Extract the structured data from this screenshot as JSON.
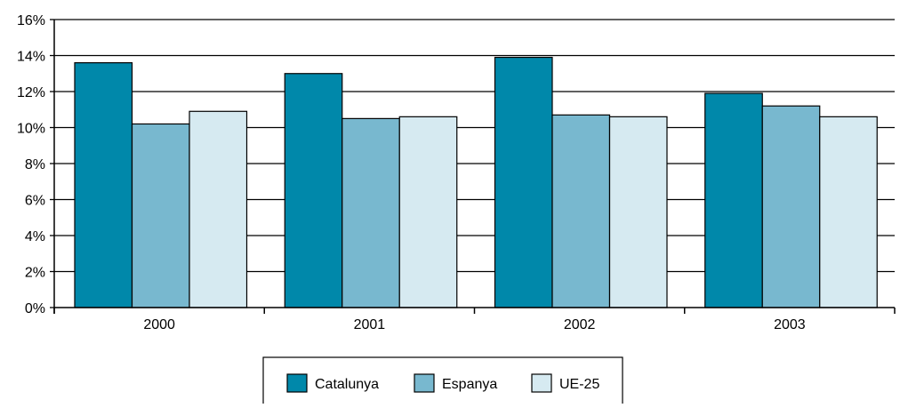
{
  "chart_data": {
    "type": "bar",
    "categories": [
      "2000",
      "2001",
      "2002",
      "2003"
    ],
    "series": [
      {
        "name": "Catalunya",
        "values": [
          13.6,
          13.0,
          13.9,
          11.9
        ],
        "color": "#0088AA"
      },
      {
        "name": "Espanya",
        "values": [
          10.2,
          10.5,
          10.7,
          11.2
        ],
        "color": "#78B8CF"
      },
      {
        "name": "UE-25",
        "values": [
          10.9,
          10.6,
          10.6,
          10.6
        ],
        "color": "#D6EAF1"
      }
    ],
    "title": "",
    "xlabel": "",
    "ylabel": "",
    "ylim": [
      0,
      16
    ],
    "yticks": [
      0,
      2,
      4,
      6,
      8,
      10,
      12,
      14,
      16
    ],
    "ytick_labels": [
      "0%",
      "2%",
      "4%",
      "6%",
      "8%",
      "10%",
      "12%",
      "14%",
      "16%"
    ],
    "grid": true,
    "legend_position": "bottom-center"
  }
}
